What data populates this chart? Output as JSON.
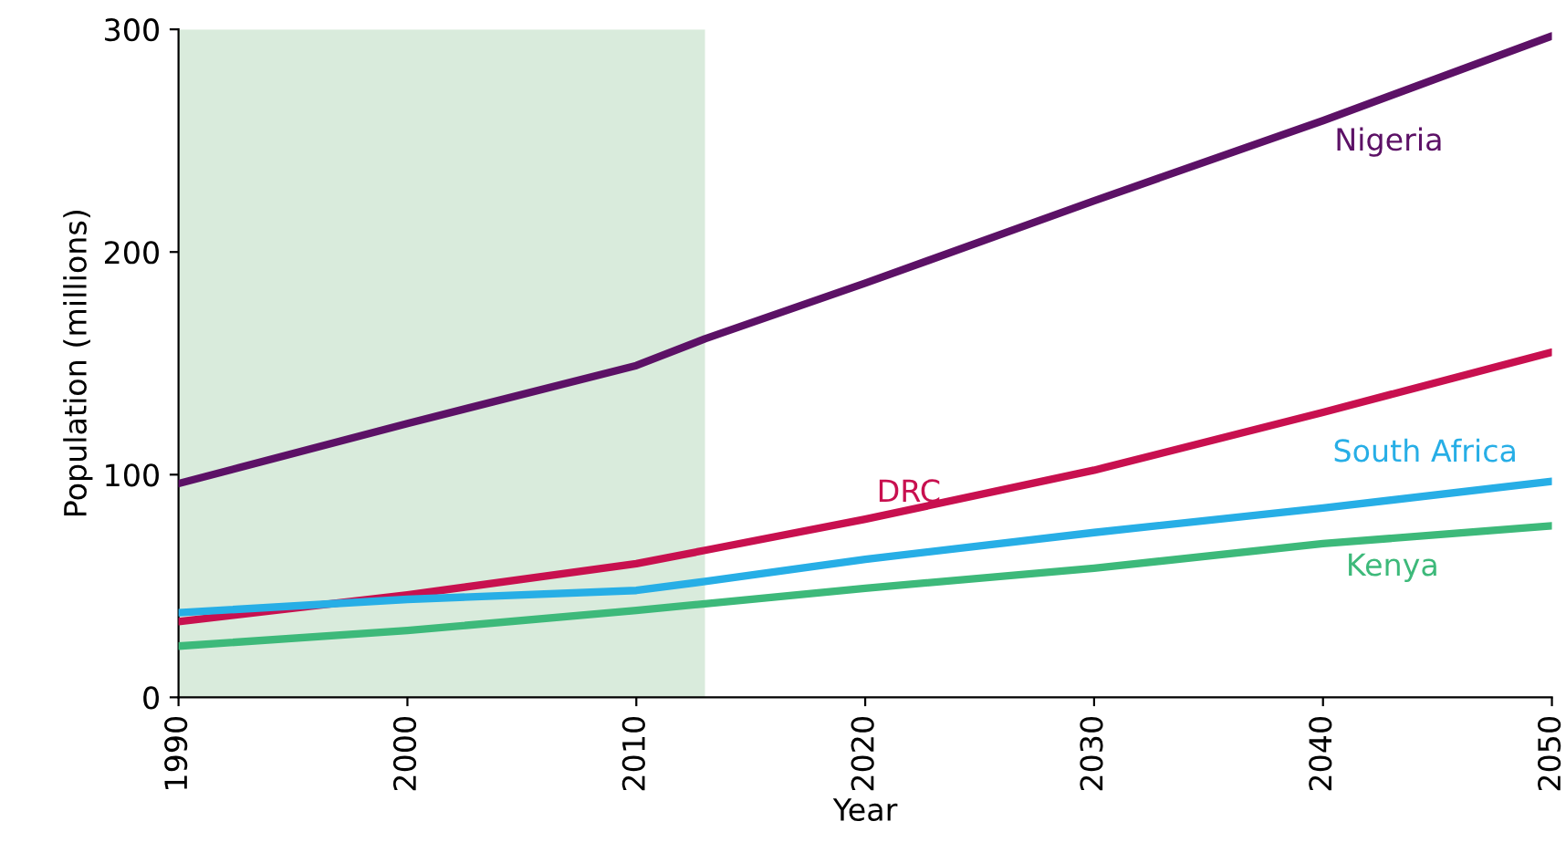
{
  "chart_data": {
    "type": "line",
    "xlabel": "Year",
    "ylabel": "Population (millions)",
    "x": [
      1990,
      2000,
      2010,
      2013,
      2020,
      2030,
      2040,
      2050
    ],
    "series": [
      {
        "name": "Nigeria",
        "color": "#5c1166",
        "values": [
          96,
          123,
          149,
          161,
          186,
          223,
          259,
          297
        ]
      },
      {
        "name": "DRC",
        "color": "#c8104f",
        "values": [
          34,
          46,
          60,
          66,
          80,
          102,
          128,
          155
        ]
      },
      {
        "name": "South Africa",
        "color": "#27aee6",
        "values": [
          38,
          44,
          48,
          52,
          62,
          74,
          85,
          97
        ]
      },
      {
        "name": "Kenya",
        "color": "#3db97a",
        "values": [
          23,
          30,
          39,
          42,
          49,
          58,
          69,
          77
        ]
      }
    ],
    "bands": [
      {
        "axis": "x",
        "from": 1990,
        "to": 2013,
        "color": "#d9ebdc"
      }
    ],
    "xlim": [
      1990,
      2050
    ],
    "xticks": [
      1990,
      2000,
      2010,
      2020,
      2030,
      2040,
      2050
    ],
    "ylim": [
      0,
      300
    ],
    "yticks": [
      0,
      100,
      200,
      300
    ],
    "grid": false,
    "legend": false,
    "marker": "none",
    "line_style": "solid"
  }
}
